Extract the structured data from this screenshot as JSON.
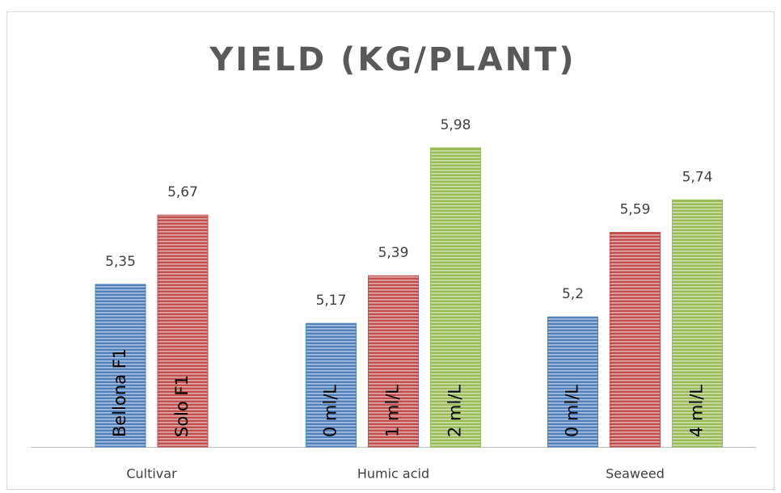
{
  "chart_data": {
    "type": "grouped-bar",
    "title": "YIELD (KG/PLANT)",
    "ylim": [
      4.6,
      6.2
    ],
    "groups": [
      {
        "label": "Cultivar",
        "bars": [
          {
            "name": "Bellona F1",
            "value": 5.35,
            "value_label": "5,35",
            "color": "#4f81bd"
          },
          {
            "name": "Solo F1",
            "value": 5.67,
            "value_label": "5,67",
            "color": "#c0504d"
          }
        ]
      },
      {
        "label": "Humic acid",
        "bars": [
          {
            "name": "0 ml/L",
            "value": 5.17,
            "value_label": "5,17",
            "color": "#4f81bd"
          },
          {
            "name": "1 ml/L",
            "value": 5.39,
            "value_label": "5,39",
            "color": "#c0504d"
          },
          {
            "name": "2 ml/L",
            "value": 5.98,
            "value_label": "5,98",
            "color": "#9bbb59"
          }
        ]
      },
      {
        "label": "Seaweed",
        "bars": [
          {
            "name": "0 ml/L",
            "value": 5.2,
            "value_label": "5,2",
            "color": "#4f81bd"
          },
          {
            "name": null,
            "value": 5.59,
            "value_label": "5,59",
            "color": "#c0504d"
          },
          {
            "name": "4 ml/L",
            "value": 5.74,
            "value_label": "5,74",
            "color": "#9bbb59"
          }
        ]
      }
    ]
  }
}
